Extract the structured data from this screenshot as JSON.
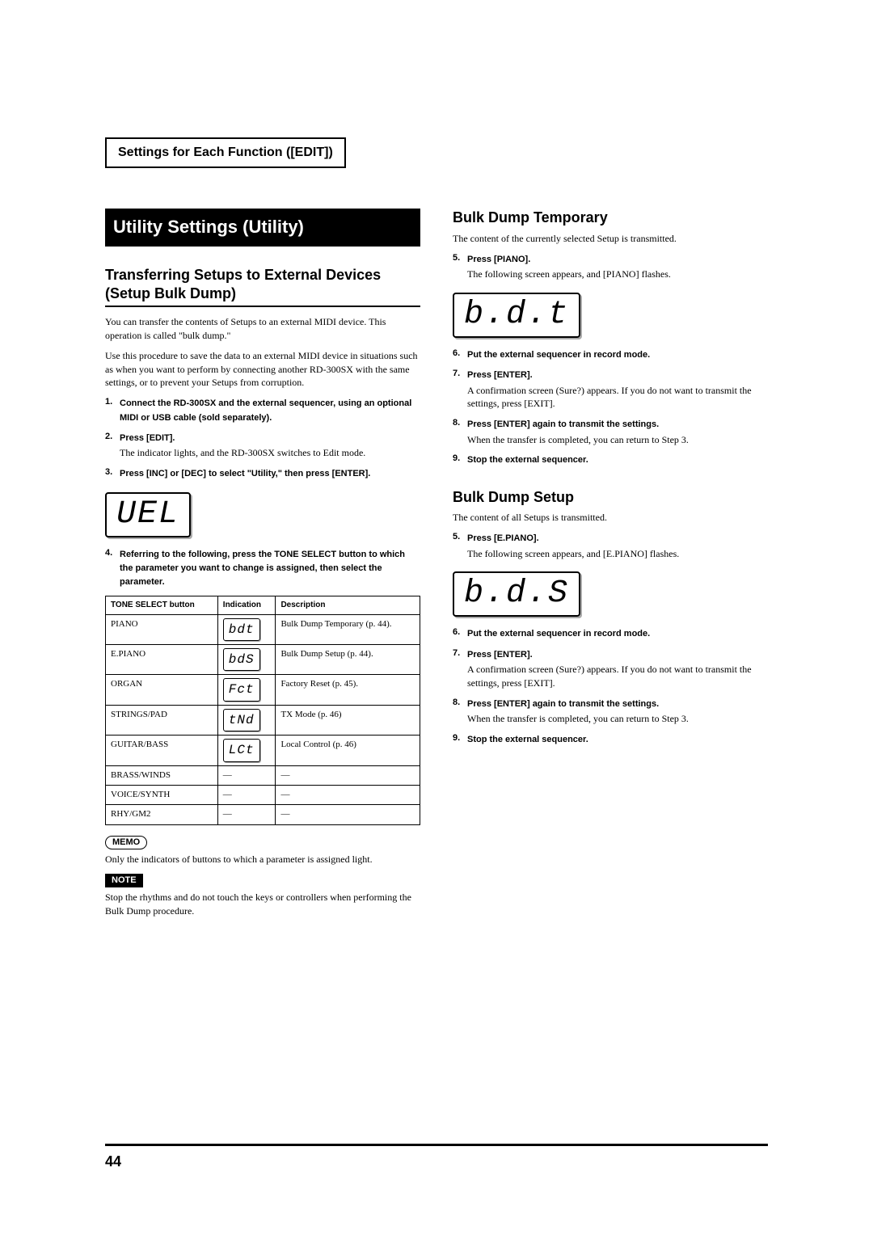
{
  "header": {
    "title": "Settings for Each Function ([EDIT])"
  },
  "pageNumber": "44",
  "left": {
    "sectionTitle": "Utility Settings (Utility)",
    "subheading": "Transferring Setups to External Devices (Setup Bulk Dump)",
    "intro1": "You can transfer the contents of Setups to an external MIDI device. This operation is called \"bulk dump.\"",
    "intro2": "Use this procedure to save the data to an external MIDI device in situations such as when you want to perform by connecting another RD-300SX with the same settings, or to prevent your Setups from corruption.",
    "steps": [
      {
        "n": "1.",
        "bold": "Connect the RD-300SX and the external sequencer, using an optional MIDI or USB cable (sold separately)."
      },
      {
        "n": "2.",
        "bold": "Press [EDIT].",
        "body": "The indicator lights, and the RD-300SX switches to Edit mode."
      },
      {
        "n": "3.",
        "bold": "Press [INC] or [DEC] to select \"Utility,\" then press [ENTER]."
      }
    ],
    "lcd1": "UEL",
    "step4": {
      "n": "4.",
      "bold": "Referring to the following, press the TONE SELECT button to which the parameter you want to change is assigned, then select the parameter."
    },
    "table": {
      "headers": [
        "TONE SELECT button",
        "Indication",
        "Description"
      ],
      "rows": [
        {
          "c0": "PIANO",
          "seg": "bdt",
          "c2": "Bulk Dump Temporary (p. 44)."
        },
        {
          "c0": "E.PIANO",
          "seg": "bdS",
          "c2": "Bulk Dump Setup (p. 44)."
        },
        {
          "c0": "ORGAN",
          "seg": "Fct",
          "c2": "Factory Reset (p. 45)."
        },
        {
          "c0": "STRINGS/PAD",
          "seg": "tNd",
          "c2": "TX Mode (p. 46)"
        },
        {
          "c0": "GUITAR/BASS",
          "seg": "LCt",
          "c2": "Local Control (p. 46)"
        },
        {
          "c0": "BRASS/WINDS",
          "seg": "—",
          "c2": "—",
          "plain": true
        },
        {
          "c0": "VOICE/SYNTH",
          "seg": "—",
          "c2": "—",
          "plain": true
        },
        {
          "c0": "RHY/GM2",
          "seg": "—",
          "c2": "—",
          "plain": true
        }
      ]
    },
    "memoLabel": "MEMO",
    "memoText": "Only the indicators of buttons to which a parameter is assigned light.",
    "noteLabel": "NOTE",
    "noteText": "Stop the rhythms and do not touch the keys or controllers when performing the Bulk Dump procedure."
  },
  "right": {
    "s1": {
      "title": "Bulk Dump Temporary",
      "intro": "The content of the currently selected Setup is transmitted.",
      "steps5": {
        "n": "5.",
        "bold": "Press [PIANO].",
        "body": "The following screen appears, and [PIANO] flashes."
      },
      "lcd": "b.d.t",
      "steps": [
        {
          "n": "6.",
          "bold": "Put the external sequencer in record mode."
        },
        {
          "n": "7.",
          "bold": "Press [ENTER].",
          "body": "A confirmation screen (Sure?) appears.\nIf you do not want to transmit the settings, press [EXIT]."
        },
        {
          "n": "8.",
          "bold": "Press [ENTER] again to transmit the settings.",
          "body": "When the transfer is completed, you can return to Step 3."
        },
        {
          "n": "9.",
          "bold": "Stop the external sequencer."
        }
      ]
    },
    "s2": {
      "title": "Bulk Dump Setup",
      "intro": "The content of all Setups is transmitted.",
      "steps5": {
        "n": "5.",
        "bold": "Press [E.PIANO].",
        "body": "The following screen appears, and [E.PIANO] flashes."
      },
      "lcd": "b.d.S",
      "steps": [
        {
          "n": "6.",
          "bold": "Put the external sequencer in record mode."
        },
        {
          "n": "7.",
          "bold": "Press [ENTER].",
          "body": "A confirmation screen (Sure?) appears.\nIf you do not want to transmit the settings, press [EXIT]."
        },
        {
          "n": "8.",
          "bold": "Press [ENTER] again to transmit the settings.",
          "body": "When the transfer is completed, you can return to Step 3."
        },
        {
          "n": "9.",
          "bold": "Stop the external sequencer."
        }
      ]
    }
  }
}
